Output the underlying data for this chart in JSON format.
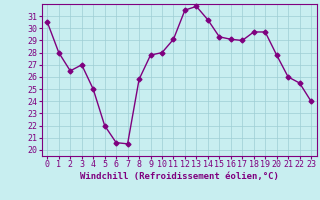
{
  "x": [
    0,
    1,
    2,
    3,
    4,
    5,
    6,
    7,
    8,
    9,
    10,
    11,
    12,
    13,
    14,
    15,
    16,
    17,
    18,
    19,
    20,
    21,
    22,
    23
  ],
  "y": [
    30.5,
    28.0,
    26.5,
    27.0,
    25.0,
    22.0,
    20.6,
    20.5,
    25.8,
    27.8,
    28.0,
    29.1,
    31.5,
    31.8,
    30.7,
    29.3,
    29.1,
    29.0,
    29.7,
    29.7,
    27.8,
    26.0,
    25.5,
    24.0
  ],
  "line_color": "#7f007f",
  "marker": "D",
  "markersize": 2.5,
  "linewidth": 1.0,
  "bg_color": "#c8eef0",
  "grid_color": "#9ecdd4",
  "xlabel": "Windchill (Refroidissement éolien,°C)",
  "xlabel_fontsize": 6.5,
  "tick_fontsize": 6.0,
  "ylabel_ticks": [
    20,
    21,
    22,
    23,
    24,
    25,
    26,
    27,
    28,
    29,
    30,
    31
  ],
  "ylim": [
    19.5,
    32.0
  ],
  "xlim": [
    -0.5,
    23.5
  ]
}
